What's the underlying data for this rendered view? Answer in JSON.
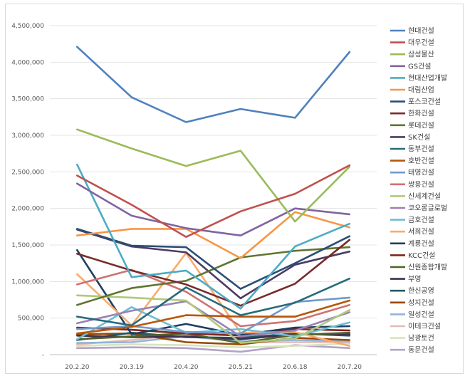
{
  "chart_data": {
    "type": "line",
    "title": "",
    "xlabel": "",
    "ylabel": "",
    "categories": [
      "20.2.20",
      "20.3.19",
      "20.4.20",
      "20.5.21",
      "20.6.18",
      "20.7.20"
    ],
    "ylim": [
      0,
      4500000
    ],
    "y_ticks": [
      0,
      500000,
      1000000,
      1500000,
      2000000,
      2500000,
      3000000,
      3500000,
      4000000,
      4500000
    ],
    "y_tick_labels": [
      "-",
      "500,000",
      "1,000,000",
      "1,500,000",
      "2,000,000",
      "2,500,000",
      "3,000,000",
      "3,500,000",
      "4,000,000",
      "4,500,000"
    ],
    "grid": true,
    "legend_position": "right",
    "series": [
      {
        "name": "현대건설",
        "color": "#4F81BD",
        "values": [
          4210000,
          3520000,
          3180000,
          3360000,
          3240000,
          4140000
        ]
      },
      {
        "name": "대우건설",
        "color": "#C0504D",
        "values": [
          2450000,
          2050000,
          1610000,
          1960000,
          2200000,
          2590000
        ]
      },
      {
        "name": "삼성물산",
        "color": "#9BBB59",
        "values": [
          3080000,
          2820000,
          2580000,
          2790000,
          1820000,
          2570000
        ]
      },
      {
        "name": "GS건설",
        "color": "#8064A2",
        "values": [
          2340000,
          1900000,
          1730000,
          1630000,
          2000000,
          1920000
        ]
      },
      {
        "name": "현대산업개발",
        "color": "#4BACC6",
        "values": [
          2600000,
          1060000,
          1150000,
          630000,
          1480000,
          1790000
        ]
      },
      {
        "name": "대림산업",
        "color": "#F79646",
        "values": [
          1630000,
          1720000,
          1720000,
          1320000,
          1950000,
          1740000
        ]
      },
      {
        "name": "포스코건설",
        "color": "#2C4D75",
        "values": [
          1720000,
          1490000,
          1470000,
          900000,
          1250000,
          1620000
        ]
      },
      {
        "name": "한화건설",
        "color": "#772C2A",
        "values": [
          1380000,
          1150000,
          960000,
          670000,
          970000,
          1570000
        ]
      },
      {
        "name": "롯데건설",
        "color": "#5F7530",
        "values": [
          680000,
          910000,
          1010000,
          1330000,
          1420000,
          1470000
        ]
      },
      {
        "name": "SK건설",
        "color": "#4D3B62",
        "values": [
          1710000,
          1480000,
          1400000,
          770000,
          1230000,
          1410000
        ]
      },
      {
        "name": "동부건설",
        "color": "#276A7C",
        "values": [
          520000,
          400000,
          920000,
          540000,
          710000,
          1040000
        ]
      },
      {
        "name": "호반건설",
        "color": "#B65708",
        "values": [
          290000,
          380000,
          540000,
          520000,
          520000,
          740000
        ]
      },
      {
        "name": "태영건설",
        "color": "#729ACA",
        "values": [
          350000,
          390000,
          310000,
          290000,
          720000,
          780000
        ]
      },
      {
        "name": "쌍용건설",
        "color": "#CD7371",
        "values": [
          960000,
          1160000,
          860000,
          390000,
          460000,
          680000
        ]
      },
      {
        "name": "신세계건설",
        "color": "#AFC97A",
        "values": [
          810000,
          780000,
          740000,
          160000,
          220000,
          610000
        ]
      },
      {
        "name": "코오롱글로벌",
        "color": "#9983B5",
        "values": [
          430000,
          600000,
          730000,
          250000,
          330000,
          580000
        ]
      },
      {
        "name": "금호건설",
        "color": "#6FBDD1",
        "values": [
          210000,
          650000,
          300000,
          350000,
          250000,
          440000
        ]
      },
      {
        "name": "서희건설",
        "color": "#F9AB6B",
        "values": [
          1100000,
          400000,
          1390000,
          300000,
          310000,
          120000
        ]
      },
      {
        "name": "계룡건설",
        "color": "#1F3E5E",
        "values": [
          1430000,
          280000,
          420000,
          270000,
          370000,
          390000
        ]
      },
      {
        "name": "KCC건설",
        "color": "#7F2623",
        "values": [
          370000,
          340000,
          290000,
          260000,
          350000,
          330000
        ]
      },
      {
        "name": "신원종합개발",
        "color": "#4F6228",
        "values": [
          210000,
          250000,
          290000,
          160000,
          270000,
          300000
        ]
      },
      {
        "name": "부영",
        "color": "#3F3151",
        "values": [
          260000,
          240000,
          250000,
          210000,
          280000,
          280000
        ]
      },
      {
        "name": "한신공영",
        "color": "#215968",
        "values": [
          200000,
          300000,
          240000,
          230000,
          290000,
          260000
        ]
      },
      {
        "name": "성지건설",
        "color": "#984807",
        "values": [
          280000,
          290000,
          170000,
          140000,
          230000,
          200000
        ]
      },
      {
        "name": "일성건설",
        "color": "#95B3D7",
        "values": [
          160000,
          170000,
          250000,
          180000,
          200000,
          180000
        ]
      },
      {
        "name": "이테크건설",
        "color": "#E6B9B8",
        "values": [
          140000,
          200000,
          280000,
          170000,
          170000,
          170000
        ]
      },
      {
        "name": "남광토건",
        "color": "#D7E4BD",
        "values": [
          120000,
          140000,
          130000,
          100000,
          120000,
          150000
        ]
      },
      {
        "name": "동문건설",
        "color": "#B3A2C7",
        "values": [
          90000,
          100000,
          90000,
          40000,
          130000,
          90000
        ]
      }
    ]
  }
}
